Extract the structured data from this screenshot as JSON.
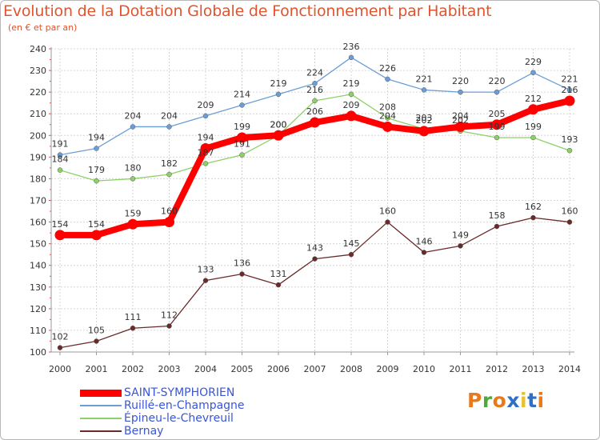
{
  "title": "Evolution de la Dotation Globale de Fonctionnement par Habitant",
  "subtitle": "(en € et par an)",
  "brand": "Proxiti",
  "brand_colors": [
    "#e87a1e",
    "#4fa83d",
    "#e87a1e",
    "#2f6fc4",
    "#e8c22e",
    "#2f6fc4",
    "#e87a1e"
  ],
  "chart_data": {
    "type": "line",
    "x": [
      "2000",
      "2001",
      "2002",
      "2003",
      "2004",
      "2005",
      "2006",
      "2007",
      "2008",
      "2009",
      "2010",
      "2011",
      "2012",
      "2013",
      "2014"
    ],
    "ylim": [
      100,
      240
    ],
    "yticks": [
      100,
      110,
      120,
      130,
      140,
      150,
      160,
      170,
      180,
      190,
      200,
      210,
      220,
      230,
      240
    ],
    "grid": true,
    "legend_position": "bottom-left",
    "series": [
      {
        "name": "Ruillé-en-Champagne",
        "color": "#6c9ed6",
        "marker": "#6c9ed6",
        "emphasis": false,
        "values": [
          191,
          194,
          204,
          204,
          209,
          214,
          219,
          224,
          236,
          226,
          221,
          220,
          220,
          229,
          221
        ]
      },
      {
        "name": "Épineu-le-Chevreuil",
        "color": "#8ed068",
        "marker": "#8ed068",
        "emphasis": false,
        "values": [
          184,
          179,
          180,
          182,
          187,
          191,
          200,
          216,
          219,
          208,
          203,
          202,
          199,
          199,
          193
        ]
      },
      {
        "name": "Bernay",
        "color": "#6b2a2a",
        "marker": "#6b2a2a",
        "emphasis": false,
        "values": [
          102,
          105,
          111,
          112,
          133,
          136,
          131,
          143,
          145,
          160,
          146,
          149,
          158,
          162,
          160
        ]
      },
      {
        "name": "SAINT-SYMPHORIEN",
        "color": "#ff0000",
        "marker": "#ff0000",
        "emphasis": true,
        "values": [
          154,
          154,
          159,
          160,
          194,
          199,
          200,
          206,
          209,
          204,
          202,
          204,
          205,
          212,
          216
        ]
      }
    ],
    "legend_order": [
      "SAINT-SYMPHORIEN",
      "Ruillé-en-Champagne",
      "Épineu-le-Chevreuil",
      "Bernay"
    ]
  }
}
